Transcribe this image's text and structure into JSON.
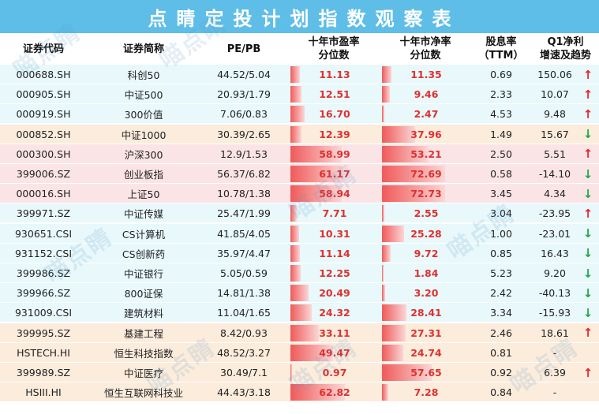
{
  "title": "点睛定投计划指数观察表",
  "headers": {
    "code": "证券代码",
    "name": "证券简称",
    "pepb": "PE/PB",
    "pe_pct": [
      "十年市盈率",
      "分位数"
    ],
    "pb_pct": [
      "十年市净率",
      "分位数"
    ],
    "div": [
      "股息率",
      "（TTM）"
    ],
    "q1": [
      "Q1净利",
      "增速及趋势"
    ]
  },
  "watermark": "喵点睛",
  "colors": {
    "title_bg": "#5fbee8",
    "row_blue": "#e8f8fb",
    "row_peach": "#fcecdc",
    "row_pink": "#fbe4e6",
    "bar": "#f05a5a",
    "up": "#e8262a",
    "down": "#22a64a"
  },
  "rows": [
    {
      "code": "000688.SH",
      "name": "科创50",
      "pepb": "44.52/5.04",
      "pe_pct": "11.13",
      "pb_pct": "11.35",
      "div": "0.69",
      "q1": "150.06",
      "trend": "up",
      "bg": "blue"
    },
    {
      "code": "000905.SH",
      "name": "中证500",
      "pepb": "20.93/1.79",
      "pe_pct": "12.51",
      "pb_pct": "9.46",
      "div": "2.33",
      "q1": "10.07",
      "trend": "up",
      "bg": "blue"
    },
    {
      "code": "000919.SH",
      "name": "300价值",
      "pepb": "7.06/0.83",
      "pe_pct": "16.70",
      "pb_pct": "2.47",
      "div": "4.53",
      "q1": "9.48",
      "trend": "up",
      "bg": "blue"
    },
    {
      "code": "000852.SH",
      "name": "中证1000",
      "pepb": "30.39/2.65",
      "pe_pct": "12.39",
      "pb_pct": "37.96",
      "div": "1.49",
      "q1": "15.67",
      "trend": "down",
      "bg": "peach"
    },
    {
      "code": "000300.SH",
      "name": "沪深300",
      "pepb": "12.9/1.53",
      "pe_pct": "58.99",
      "pb_pct": "53.21",
      "div": "2.50",
      "q1": "5.51",
      "trend": "up",
      "bg": "pink"
    },
    {
      "code": "399006.SZ",
      "name": "创业板指",
      "pepb": "56.37/6.82",
      "pe_pct": "61.17",
      "pb_pct": "72.69",
      "div": "0.58",
      "q1": "-14.10",
      "trend": "down",
      "bg": "pink"
    },
    {
      "code": "000016.SH",
      "name": "上证50",
      "pepb": "10.78/1.38",
      "pe_pct": "58.94",
      "pb_pct": "72.73",
      "div": "3.45",
      "q1": "4.34",
      "trend": "down",
      "bg": "pink"
    },
    {
      "code": "399971.SZ",
      "name": "中证传媒",
      "pepb": "25.47/1.99",
      "pe_pct": "7.71",
      "pb_pct": "2.55",
      "div": "3.04",
      "q1": "-23.95",
      "trend": "up",
      "bg": "blue"
    },
    {
      "code": "930651.CSI",
      "name": "CS计算机",
      "pepb": "41.85/4.05",
      "pe_pct": "10.31",
      "pb_pct": "25.28",
      "div": "1.00",
      "q1": "-23.01",
      "trend": "down",
      "bg": "blue"
    },
    {
      "code": "931152.CSI",
      "name": "CS创新药",
      "pepb": "35.97/4.47",
      "pe_pct": "11.14",
      "pb_pct": "9.72",
      "div": "0.85",
      "q1": "16.43",
      "trend": "down",
      "bg": "blue"
    },
    {
      "code": "399986.SZ",
      "name": "中证银行",
      "pepb": "5.05/0.59",
      "pe_pct": "12.25",
      "pb_pct": "1.84",
      "div": "5.23",
      "q1": "9.20",
      "trend": "down",
      "bg": "blue"
    },
    {
      "code": "399966.SZ",
      "name": "800证保",
      "pepb": "14.81/1.38",
      "pe_pct": "20.49",
      "pb_pct": "3.20",
      "div": "2.42",
      "q1": "-40.13",
      "trend": "down",
      "bg": "blue"
    },
    {
      "code": "931009.CSI",
      "name": "建筑材料",
      "pepb": "11.04/1.65",
      "pe_pct": "24.32",
      "pb_pct": "28.41",
      "div": "3.34",
      "q1": "-15.93",
      "trend": "down",
      "bg": "blue"
    },
    {
      "code": "399995.SZ",
      "name": "基建工程",
      "pepb": "8.42/0.93",
      "pe_pct": "33.11",
      "pb_pct": "27.31",
      "div": "2.46",
      "q1": "18.61",
      "trend": "up",
      "bg": "peach"
    },
    {
      "code": "HSTECH.HI",
      "name": "恒生科技指数",
      "pepb": "48.52/3.27",
      "pe_pct": "49.47",
      "pb_pct": "24.74",
      "div": "0.81",
      "q1": "-",
      "trend": "",
      "bg": "peach"
    },
    {
      "code": "399989.SZ",
      "name": "中证医疗",
      "pepb": "30.49/7.1",
      "pe_pct": "0.97",
      "pb_pct": "57.65",
      "div": "0.92",
      "q1": "6.39",
      "trend": "up",
      "bg": "peach"
    },
    {
      "code": "HSIII.HI",
      "name": "恒生互联网科技业",
      "pepb": "44.43/3.18",
      "pe_pct": "62.82",
      "pb_pct": "7.28",
      "div": "0.84",
      "q1": "-",
      "trend": "",
      "bg": "peach"
    }
  ]
}
